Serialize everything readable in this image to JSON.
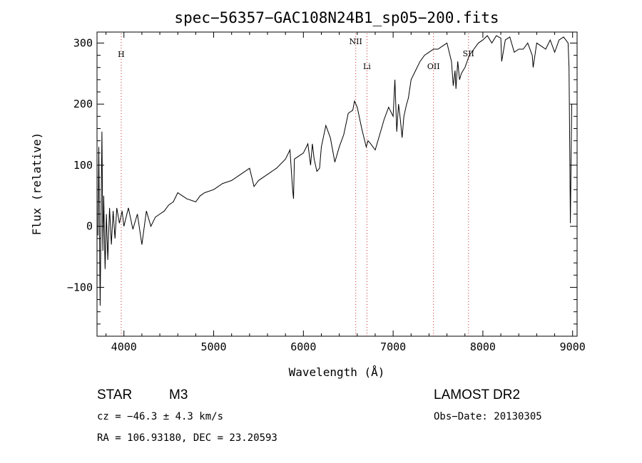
{
  "chart_data": {
    "type": "line",
    "title": "spec−56357−GAC108N24B1_sp05−200.fits",
    "xlabel": "Wavelength (Å)",
    "ylabel": "Flux (relative)",
    "xlim": [
      3700,
      9050
    ],
    "ylim": [
      -180,
      318
    ],
    "x_ticks": [
      4000,
      5000,
      6000,
      7000,
      8000,
      9000
    ],
    "x_tick_labels": [
      "4000",
      "5000",
      "6000",
      "7000",
      "8000",
      "9000"
    ],
    "y_ticks": [
      -100,
      0,
      100,
      200,
      300
    ],
    "y_tick_labels": [
      "−100",
      "0",
      "100",
      "200",
      "300"
    ],
    "grid": false,
    "series": [
      {
        "x": [
          3710,
          3720,
          3735,
          3745,
          3755,
          3765,
          3775,
          3790,
          3805,
          3820,
          3840,
          3860,
          3880,
          3900,
          3920,
          3950,
          3980,
          4000,
          4050,
          4100,
          4150,
          4200,
          4250,
          4300,
          4350,
          4400,
          4450,
          4500,
          4550,
          4600,
          4700,
          4800,
          4850,
          4900,
          5000,
          5100,
          5200,
          5300,
          5400,
          5450,
          5500,
          5600,
          5700,
          5800,
          5850,
          5880,
          5890,
          5900,
          5950,
          6000,
          6050,
          6080,
          6100,
          6120,
          6150,
          6180,
          6200,
          6250,
          6300,
          6350,
          6400,
          6450,
          6500,
          6550,
          6570,
          6600,
          6650,
          6700,
          6720,
          6750,
          6800,
          6850,
          6900,
          6950,
          7000,
          7020,
          7040,
          7060,
          7080,
          7100,
          7120,
          7150,
          7170,
          7200,
          7250,
          7300,
          7350,
          7400,
          7450,
          7500,
          7550,
          7600,
          7650,
          7670,
          7690,
          7700,
          7720,
          7740,
          7760,
          7780,
          7800,
          7850,
          7900,
          7950,
          8000,
          8050,
          8100,
          8150,
          8200,
          8210,
          8250,
          8300,
          8350,
          8400,
          8450,
          8500,
          8550,
          8560,
          8600,
          8650,
          8700,
          8750,
          8800,
          8850,
          8900,
          8950,
          8960,
          8975,
          8990
        ],
        "y": [
          -15,
          130,
          -130,
          20,
          155,
          -40,
          50,
          -70,
          20,
          -55,
          30,
          -30,
          25,
          -20,
          30,
          5,
          25,
          0,
          30,
          -5,
          20,
          -30,
          25,
          0,
          15,
          20,
          25,
          35,
          40,
          55,
          45,
          40,
          50,
          55,
          60,
          70,
          75,
          85,
          95,
          65,
          75,
          85,
          95,
          110,
          125,
          60,
          45,
          110,
          115,
          120,
          135,
          100,
          135,
          110,
          90,
          95,
          130,
          165,
          145,
          105,
          130,
          150,
          185,
          190,
          205,
          195,
          160,
          130,
          140,
          135,
          125,
          150,
          175,
          195,
          180,
          240,
          155,
          200,
          175,
          145,
          180,
          200,
          210,
          240,
          255,
          270,
          280,
          285,
          290,
          290,
          295,
          300,
          270,
          230,
          255,
          225,
          270,
          240,
          250,
          255,
          260,
          280,
          290,
          300,
          305,
          312,
          300,
          312,
          308,
          270,
          305,
          310,
          285,
          290,
          290,
          300,
          280,
          260,
          300,
          295,
          290,
          305,
          285,
          305,
          310,
          300,
          260,
          5,
          200
        ]
      }
    ],
    "annotations": [
      {
        "label": "H",
        "x": 3970
      },
      {
        "label": "NII",
        "x": 6583
      },
      {
        "label": "Li",
        "x": 6708
      },
      {
        "label": "OII",
        "x": 7450
      },
      {
        "label": "SII",
        "x": 7840
      }
    ]
  },
  "info": {
    "object_class": "STAR",
    "subclass": "M3",
    "survey": "LAMOST DR2",
    "redshift_line": "cz = −46.3 ± 4.3 km/s",
    "obs_date_line": "Obs−Date: 20130305",
    "coords_line": "RA = 106.93180, DEC =  23.20593"
  }
}
